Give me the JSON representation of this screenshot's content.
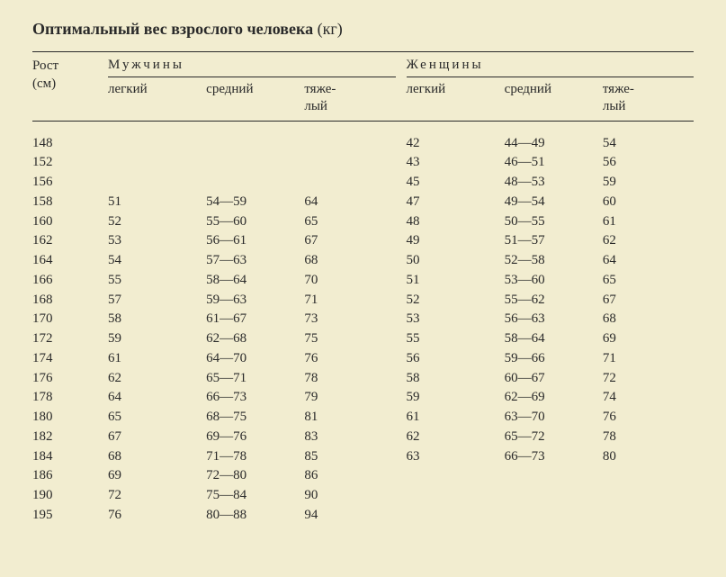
{
  "title_bold": "Оптимальный вес взрослого человека",
  "title_unit": "(кг)",
  "height_label": "Рост",
  "height_unit": "(см)",
  "group_men": "Мужчины",
  "group_women": "Женщины",
  "col_light": "легкий",
  "col_medium": "средний",
  "col_heavy_1": "тяже-",
  "col_heavy_2": "лый",
  "rows": [
    {
      "h": "148",
      "ml": "",
      "mm": "",
      "mh": "",
      "wl": "42",
      "wm": "44—49",
      "wh": "54"
    },
    {
      "h": "152",
      "ml": "",
      "mm": "",
      "mh": "",
      "wl": "43",
      "wm": "46—51",
      "wh": "56"
    },
    {
      "h": "156",
      "ml": "",
      "mm": "",
      "mh": "",
      "wl": "45",
      "wm": "48—53",
      "wh": "59"
    },
    {
      "h": "158",
      "ml": "51",
      "mm": "54—59",
      "mh": "64",
      "wl": "47",
      "wm": "49—54",
      "wh": "60"
    },
    {
      "h": "160",
      "ml": "52",
      "mm": "55—60",
      "mh": "65",
      "wl": "48",
      "wm": "50—55",
      "wh": "61"
    },
    {
      "h": "162",
      "ml": "53",
      "mm": "56—61",
      "mh": "67",
      "wl": "49",
      "wm": "51—57",
      "wh": "62"
    },
    {
      "h": "164",
      "ml": "54",
      "mm": "57—63",
      "mh": "68",
      "wl": "50",
      "wm": "52—58",
      "wh": "64"
    },
    {
      "h": "166",
      "ml": "55",
      "mm": "58—64",
      "mh": "70",
      "wl": "51",
      "wm": "53—60",
      "wh": "65"
    },
    {
      "h": "168",
      "ml": "57",
      "mm": "59—63",
      "mh": "71",
      "wl": "52",
      "wm": "55—62",
      "wh": "67"
    },
    {
      "h": "170",
      "ml": "58",
      "mm": "61—67",
      "mh": "73",
      "wl": "53",
      "wm": "56—63",
      "wh": "68"
    },
    {
      "h": "172",
      "ml": "59",
      "mm": "62—68",
      "mh": "75",
      "wl": "55",
      "wm": "58—64",
      "wh": "69"
    },
    {
      "h": "174",
      "ml": "61",
      "mm": "64—70",
      "mh": "76",
      "wl": "56",
      "wm": "59—66",
      "wh": "71"
    },
    {
      "h": "176",
      "ml": "62",
      "mm": "65—71",
      "mh": "78",
      "wl": "58",
      "wm": "60—67",
      "wh": "72"
    },
    {
      "h": "178",
      "ml": "64",
      "mm": "66—73",
      "mh": "79",
      "wl": "59",
      "wm": "62—69",
      "wh": "74"
    },
    {
      "h": "180",
      "ml": "65",
      "mm": "68—75",
      "mh": "81",
      "wl": "61",
      "wm": "63—70",
      "wh": "76"
    },
    {
      "h": "182",
      "ml": "67",
      "mm": "69—76",
      "mh": "83",
      "wl": "62",
      "wm": "65—72",
      "wh": "78"
    },
    {
      "h": "184",
      "ml": "68",
      "mm": "71—78",
      "mh": "85",
      "wl": "63",
      "wm": "66—73",
      "wh": "80"
    },
    {
      "h": "186",
      "ml": "69",
      "mm": "72—80",
      "mh": "86",
      "wl": "",
      "wm": "",
      "wh": ""
    },
    {
      "h": "190",
      "ml": "72",
      "mm": "75—84",
      "mh": "90",
      "wl": "",
      "wm": "",
      "wh": ""
    },
    {
      "h": "195",
      "ml": "76",
      "mm": "80—88",
      "mh": "94",
      "wl": "",
      "wm": "",
      "wh": ""
    }
  ]
}
